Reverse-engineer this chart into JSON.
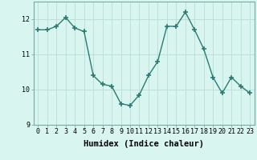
{
  "x": [
    0,
    1,
    2,
    3,
    4,
    5,
    6,
    7,
    8,
    9,
    10,
    11,
    12,
    13,
    14,
    15,
    16,
    17,
    18,
    19,
    20,
    21,
    22,
    23
  ],
  "y": [
    11.7,
    11.7,
    11.8,
    12.05,
    11.75,
    11.65,
    10.4,
    10.15,
    10.1,
    9.6,
    9.55,
    9.85,
    10.4,
    10.8,
    11.8,
    11.8,
    12.2,
    11.7,
    11.15,
    10.35,
    9.9,
    10.35,
    10.1,
    9.9
  ],
  "line_color": "#2d7a72",
  "marker": "+",
  "marker_size": 4,
  "bg_color": "#d8f5f0",
  "grid_color": "#b8ddd8",
  "xlabel": "Humidex (Indice chaleur)",
  "ylim": [
    9.0,
    12.5
  ],
  "xlim": [
    -0.5,
    23.5
  ],
  "yticks": [
    9,
    10,
    11,
    12
  ],
  "xticks": [
    0,
    1,
    2,
    3,
    4,
    5,
    6,
    7,
    8,
    9,
    10,
    11,
    12,
    13,
    14,
    15,
    16,
    17,
    18,
    19,
    20,
    21,
    22,
    23
  ],
  "tick_fontsize": 6.0,
  "xlabel_fontsize": 7.5,
  "line_width": 1.0,
  "marker_linewidth": 1.2
}
